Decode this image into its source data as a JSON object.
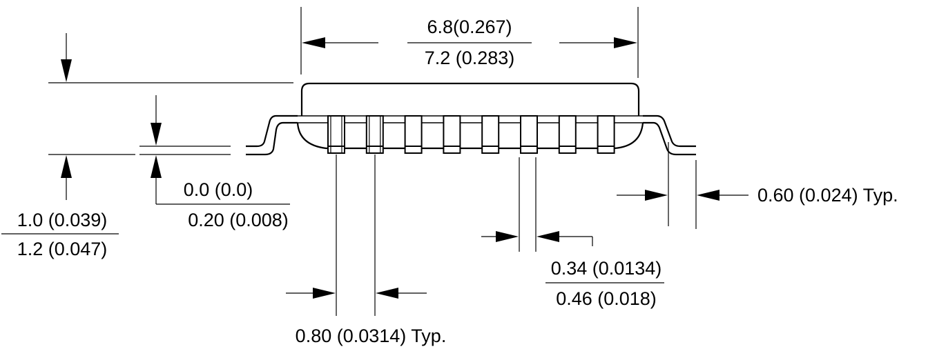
{
  "dimensions": {
    "body_length": {
      "min": "6.8(0.267)",
      "max": "7.2 (0.283)"
    },
    "height": {
      "min": "1.0 (0.039)",
      "max": "1.2 (0.047)"
    },
    "standoff": {
      "min": "0.0 (0.0)",
      "max": "0.20 (0.008)"
    },
    "lead_length": {
      "value": "0.60 (0.024) Typ."
    },
    "lead_width": {
      "min": "0.34 (0.0134)",
      "max": "0.46 (0.018)"
    },
    "lead_pitch": {
      "value": "0.80 (0.0314) Typ."
    }
  },
  "lead_count": 8
}
